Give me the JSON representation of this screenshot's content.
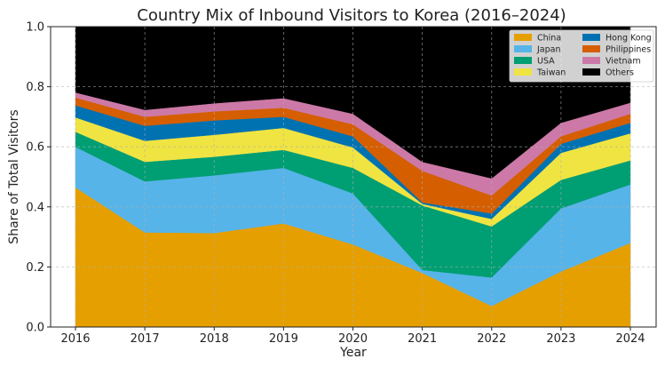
{
  "chart_data": {
    "type": "area",
    "stacked": true,
    "title": "Country Mix of Inbound Visitors to Korea (2016–2024)",
    "xlabel": "Year",
    "ylabel": "Share of Total Visitors",
    "ylim": [
      0.0,
      1.0
    ],
    "y_ticks": [
      "0.0",
      "0.2",
      "0.4",
      "0.6",
      "0.8",
      "1.0"
    ],
    "y_tick_values": [
      0.0,
      0.2,
      0.4,
      0.6,
      0.8,
      1.0
    ],
    "grid": true,
    "legend_position": "top-right",
    "categories": [
      "2016",
      "2017",
      "2018",
      "2019",
      "2020",
      "2021",
      "2022",
      "2023",
      "2024"
    ],
    "series": [
      {
        "name": "China",
        "color": "#E69F00",
        "values": [
          0.465,
          0.315,
          0.313,
          0.345,
          0.275,
          0.18,
          0.07,
          0.185,
          0.28
        ]
      },
      {
        "name": "Japan",
        "color": "#56B4E9",
        "values": [
          0.135,
          0.17,
          0.192,
          0.185,
          0.17,
          0.01,
          0.095,
          0.21,
          0.195
        ]
      },
      {
        "name": "USA",
        "color": "#009E73",
        "values": [
          0.05,
          0.065,
          0.062,
          0.06,
          0.085,
          0.215,
          0.17,
          0.095,
          0.08
        ]
      },
      {
        "name": "Taiwan",
        "color": "#F0E442",
        "values": [
          0.048,
          0.07,
          0.073,
          0.073,
          0.068,
          0.005,
          0.025,
          0.09,
          0.09
        ]
      },
      {
        "name": "Hong Kong",
        "color": "#0072B2",
        "values": [
          0.04,
          0.05,
          0.048,
          0.037,
          0.037,
          0.005,
          0.018,
          0.03,
          0.035
        ]
      },
      {
        "name": "Philippines",
        "color": "#D55E00",
        "values": [
          0.026,
          0.03,
          0.03,
          0.03,
          0.04,
          0.105,
          0.06,
          0.025,
          0.03
        ]
      },
      {
        "name": "Vietnam",
        "color": "#CC79A7",
        "values": [
          0.017,
          0.023,
          0.027,
          0.032,
          0.035,
          0.03,
          0.057,
          0.045,
          0.037
        ]
      },
      {
        "name": "Others",
        "color": "#000000",
        "values": [
          0.219,
          0.277,
          0.255,
          0.238,
          0.29,
          0.45,
          0.505,
          0.32,
          0.253
        ]
      }
    ],
    "legend_columns": [
      [
        "China",
        "Japan",
        "USA",
        "Taiwan"
      ],
      [
        "Hong Kong",
        "Philippines",
        "Vietnam",
        "Others"
      ]
    ]
  }
}
